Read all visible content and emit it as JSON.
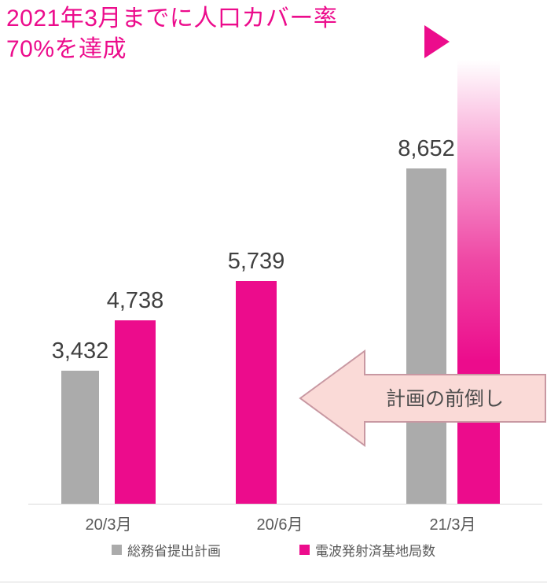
{
  "header": {
    "title_line1": "2021年3月までに人口カバー率",
    "title_line2": "70%を達成",
    "accent_color": "#ec0c8c"
  },
  "annotation": {
    "label": "計画の前倒し",
    "fill_color": "#fadad7",
    "border_color": "#c898a2",
    "text_color": "#4d4d4d"
  },
  "chart_data": {
    "type": "bar",
    "title": "",
    "categories": [
      "20/3月",
      "20/6月",
      "21/3月"
    ],
    "series": [
      {
        "name": "総務省提出計画",
        "color": "#ababab"
      },
      {
        "name": "電波発射済基地局数",
        "color": "#ec0c8c"
      }
    ],
    "groups": [
      {
        "category": "20/3月",
        "bars": [
          {
            "series": "総務省提出計画",
            "value": 3432,
            "label": "3,432"
          },
          {
            "series": "電波発射済基地局数",
            "value": 4738,
            "label": "4,738"
          }
        ]
      },
      {
        "category": "20/6月",
        "bars": [
          {
            "series": "電波発射済基地局数",
            "value": 5739,
            "label": "5,739"
          }
        ]
      },
      {
        "category": "21/3月",
        "bars": [
          {
            "series": "総務省提出計画",
            "value": 8652,
            "label": "8,652"
          },
          {
            "series": "電波発射済基地局数",
            "value": null,
            "label": "",
            "gradient_fade_top": true
          }
        ]
      }
    ],
    "ylim": [
      0,
      10150
    ],
    "grid": false,
    "legend_position": "bottom",
    "value_label_color": "#404040",
    "axis_label_color": "#595959"
  }
}
